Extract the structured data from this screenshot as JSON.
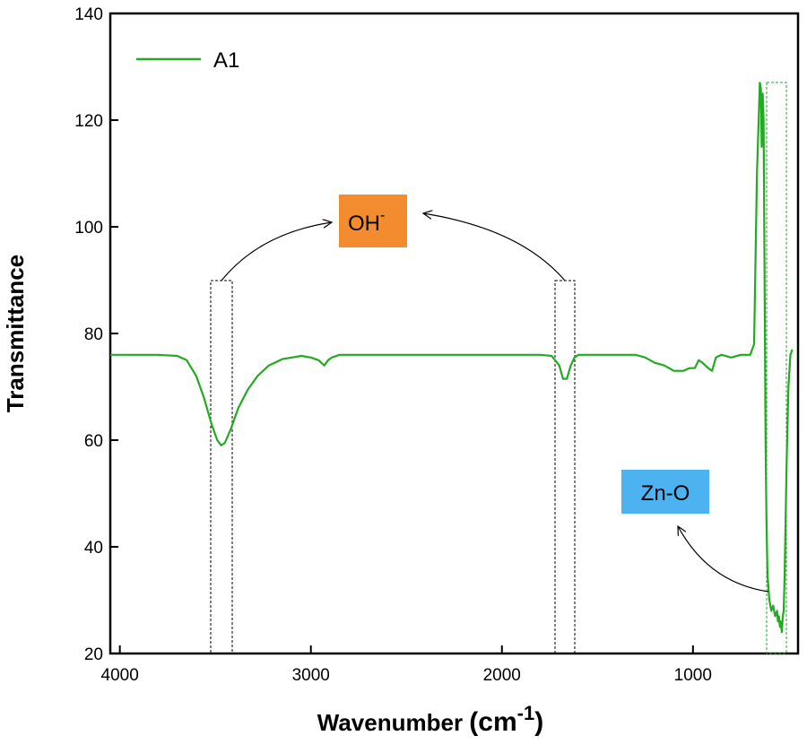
{
  "chart_data": {
    "type": "line",
    "xlabel": "Wavenumber",
    "xlabel_unit_base": "cm",
    "xlabel_unit_exp": "-1",
    "ylabel": "Transmittance",
    "xlim": [
      4050,
      450
    ],
    "ylim": [
      20,
      140
    ],
    "x_reversed": true,
    "x_ticks": [
      4000,
      3000,
      2000,
      1000
    ],
    "y_ticks": [
      20,
      40,
      60,
      80,
      100,
      120,
      140
    ],
    "grid": false,
    "legend_position": "top-left",
    "series": [
      {
        "name": "A1",
        "color": "#22aa22",
        "x": [
          4050,
          3800,
          3700,
          3650,
          3600,
          3560,
          3520,
          3490,
          3470,
          3450,
          3420,
          3380,
          3330,
          3280,
          3220,
          3150,
          3100,
          3050,
          3000,
          2960,
          2930,
          2910,
          2890,
          2850,
          2700,
          2500,
          2300,
          2100,
          1900,
          1800,
          1740,
          1700,
          1680,
          1660,
          1640,
          1620,
          1600,
          1500,
          1400,
          1300,
          1250,
          1200,
          1150,
          1100,
          1050,
          1020,
          990,
          970,
          950,
          920,
          900,
          880,
          850,
          800,
          750,
          700,
          680,
          665,
          650,
          645,
          640,
          635,
          630,
          625,
          620,
          615,
          610,
          600,
          590,
          580,
          570,
          560,
          555,
          550,
          545,
          540,
          535,
          530,
          525,
          520,
          510,
          500,
          490,
          480
        ],
        "y": [
          76,
          76,
          75.8,
          75,
          72,
          68,
          63,
          60,
          59,
          59.5,
          62,
          66,
          69.5,
          72,
          74,
          75.2,
          75.5,
          75.8,
          75.5,
          75,
          74,
          75,
          75.5,
          76,
          76,
          76,
          76,
          76,
          76,
          76,
          75.8,
          74,
          71.5,
          71.5,
          74,
          75.5,
          76,
          76,
          76,
          76,
          75.5,
          74.5,
          74,
          73,
          73,
          73.5,
          73.5,
          75,
          74.5,
          73.5,
          73,
          75.5,
          76,
          75.5,
          76,
          76,
          78,
          110,
          127,
          126,
          115,
          125,
          120,
          90,
          60,
          45,
          35,
          30,
          28,
          29,
          27,
          28,
          26,
          27,
          25,
          26,
          24,
          27,
          28,
          35,
          55,
          70,
          76,
          77
        ]
      }
    ],
    "annotations": {
      "oh_label": "OH",
      "oh_superscript": "-",
      "zno_label": "Zn-O",
      "oh_color": "#f28c2e",
      "zno_color": "#4db3f0"
    }
  }
}
